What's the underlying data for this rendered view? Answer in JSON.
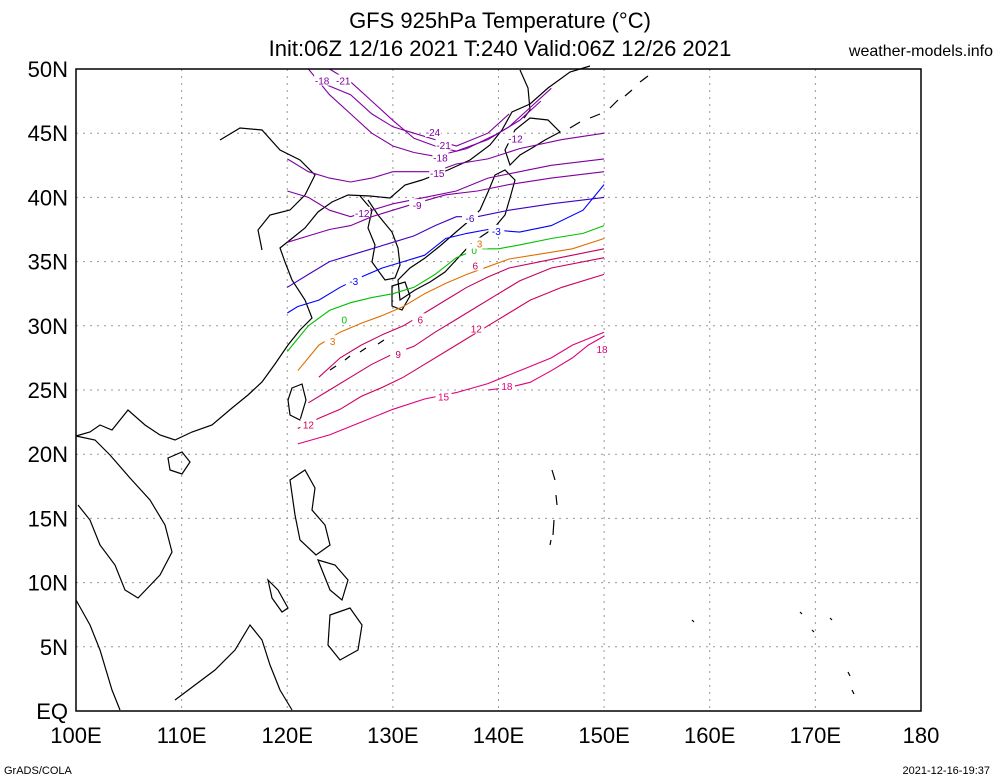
{
  "title": {
    "line1": "GFS 925hPa Temperature (°C)",
    "line2": "Init:06Z 12/16 2021 T:240 Valid:06Z 12/26 2021"
  },
  "site": "weather-models.info",
  "footer": {
    "left": "GrADS/COLA",
    "right": "2021-12-16-19:37"
  },
  "map": {
    "lon_range": [
      100,
      180
    ],
    "lat_range": [
      0,
      50
    ],
    "data_extent": {
      "lon": [
        120,
        150
      ],
      "lat": [
        20,
        50
      ]
    },
    "grid": "dotted",
    "lat_labels": [
      "EQ",
      "5N",
      "10N",
      "15N",
      "20N",
      "25N",
      "30N",
      "35N",
      "40N",
      "45N",
      "50N"
    ],
    "lon_labels": [
      "100E",
      "110E",
      "120E",
      "130E",
      "140E",
      "150E",
      "160E",
      "170E",
      "180"
    ]
  },
  "contours": [
    {
      "value": -24,
      "label": "-24",
      "color": "#8000a0",
      "points": [
        [
          123,
          49
        ],
        [
          126,
          48
        ],
        [
          128,
          46.5
        ],
        [
          130,
          45.5
        ],
        [
          132,
          45
        ],
        [
          134,
          44.5
        ],
        [
          136,
          44
        ],
        [
          139,
          45
        ],
        [
          141,
          46.5
        ]
      ],
      "labels": [
        {
          "text": "-24",
          "lon": 133.8,
          "lat": 45.1
        }
      ]
    },
    {
      "value": -21,
      "label": "-21",
      "color": "#8000a0",
      "points": [
        [
          124,
          50
        ],
        [
          126,
          49
        ],
        [
          128,
          47.5
        ],
        [
          130,
          46
        ],
        [
          132,
          44.6
        ],
        [
          134,
          44
        ],
        [
          136,
          43.6
        ],
        [
          139,
          44.5
        ],
        [
          141,
          45.5
        ],
        [
          143,
          47
        ],
        [
          145,
          48.5
        ]
      ],
      "labels": [
        {
          "text": "-21",
          "lon": 125.3,
          "lat": 49.1
        },
        {
          "text": "-21",
          "lon": 134.8,
          "lat": 44.1
        }
      ]
    },
    {
      "value": -18,
      "label": "-18",
      "color": "#8000a0",
      "points": [
        [
          122,
          50
        ],
        [
          124,
          48
        ],
        [
          126,
          46.5
        ],
        [
          128,
          45
        ],
        [
          130,
          44
        ],
        [
          132,
          43.5
        ],
        [
          134,
          43.2
        ],
        [
          137,
          43.8
        ],
        [
          140,
          45
        ],
        [
          142,
          46
        ],
        [
          144,
          47.5
        ]
      ],
      "labels": [
        {
          "text": "-18",
          "lon": 123.3,
          "lat": 49.1
        },
        {
          "text": "-18",
          "lon": 134.5,
          "lat": 43.1
        }
      ]
    },
    {
      "value": -15,
      "label": "-15",
      "color": "#8000a0",
      "points": [
        [
          120,
          43
        ],
        [
          122,
          42
        ],
        [
          124,
          41.5
        ],
        [
          126,
          41.2
        ],
        [
          128,
          41.5
        ],
        [
          130,
          42
        ],
        [
          132,
          42
        ],
        [
          134,
          42
        ],
        [
          136,
          42.6
        ],
        [
          139,
          43
        ],
        [
          142,
          43.8
        ],
        [
          146,
          44.5
        ],
        [
          150,
          45
        ]
      ],
      "labels": [
        {
          "text": "-15",
          "lon": 134.2,
          "lat": 41.9
        }
      ]
    },
    {
      "value": -12,
      "label": "-12",
      "color": "#8000a0",
      "points": [
        [
          120,
          40.5
        ],
        [
          122,
          40
        ],
        [
          124,
          39
        ],
        [
          126,
          38.5
        ],
        [
          128,
          39
        ],
        [
          130,
          39.5
        ],
        [
          133,
          40
        ],
        [
          136,
          40.5
        ],
        [
          139,
          41.5
        ],
        [
          142,
          42
        ],
        [
          145,
          42.5
        ],
        [
          150,
          43
        ]
      ],
      "labels": [
        {
          "text": "-12",
          "lon": 127.1,
          "lat": 38.8
        },
        {
          "text": "-12",
          "lon": 141.6,
          "lat": 44.6
        }
      ]
    },
    {
      "value": -9,
      "label": "-9",
      "color": "#8000a0",
      "points": [
        [
          120,
          36.5
        ],
        [
          122,
          37
        ],
        [
          124,
          37.5
        ],
        [
          126,
          37.8
        ],
        [
          128,
          38.5
        ],
        [
          130,
          39
        ],
        [
          132,
          39.5
        ],
        [
          135,
          40.2
        ],
        [
          138,
          40.5
        ],
        [
          141,
          41
        ],
        [
          145,
          41.5
        ],
        [
          150,
          42
        ]
      ],
      "labels": [
        {
          "text": "-9",
          "lon": 132.3,
          "lat": 39.4
        }
      ]
    },
    {
      "value": -6,
      "label": "-6",
      "color": "#4000c0",
      "points": [
        [
          120,
          33
        ],
        [
          122,
          34
        ],
        [
          124,
          35
        ],
        [
          126,
          35.5
        ],
        [
          128,
          36
        ],
        [
          130,
          36.5
        ],
        [
          132,
          37
        ],
        [
          134,
          37.8
        ],
        [
          136,
          38.5
        ],
        [
          138,
          38.5
        ],
        [
          141,
          39
        ],
        [
          145,
          39.5
        ],
        [
          150,
          40
        ]
      ],
      "labels": [
        {
          "text": "-6",
          "lon": 137.3,
          "lat": 38.4
        }
      ]
    },
    {
      "value": -3,
      "label": "-3",
      "color": "#0000ff",
      "points": [
        [
          120,
          31
        ],
        [
          121,
          31.5
        ],
        [
          123,
          32
        ],
        [
          125,
          33
        ],
        [
          127,
          33.8
        ],
        [
          129,
          34.5
        ],
        [
          131,
          35
        ],
        [
          133,
          35.5
        ],
        [
          135,
          36.8
        ],
        [
          137,
          37.2
        ],
        [
          139,
          37.5
        ],
        [
          142,
          37.3
        ],
        [
          145,
          37.8
        ],
        [
          148,
          39
        ],
        [
          150,
          41
        ]
      ],
      "labels": [
        {
          "text": "-3",
          "lon": 126.3,
          "lat": 33.5
        },
        {
          "text": "-3",
          "lon": 139.8,
          "lat": 37.4
        }
      ]
    },
    {
      "value": 0,
      "label": "0",
      "color": "#00c000",
      "points": [
        [
          120,
          28
        ],
        [
          121,
          29
        ],
        [
          122,
          30
        ],
        [
          124,
          31.2
        ],
        [
          126,
          31.8
        ],
        [
          128,
          32.2
        ],
        [
          130,
          32.5
        ],
        [
          132,
          33
        ],
        [
          134,
          34
        ],
        [
          136,
          35.3
        ],
        [
          138,
          36
        ],
        [
          140,
          36
        ],
        [
          142,
          36.3
        ],
        [
          145,
          36.8
        ],
        [
          148,
          37.2
        ],
        [
          150,
          37.8
        ]
      ],
      "labels": [
        {
          "text": "0",
          "lon": 125.4,
          "lat": 30.5
        },
        {
          "text": "0",
          "lon": 137.7,
          "lat": 35.9
        }
      ]
    },
    {
      "value": 3,
      "label": "3",
      "color": "#e07000",
      "points": [
        [
          121,
          26.5
        ],
        [
          122,
          27.5
        ],
        [
          123,
          28.5
        ],
        [
          125,
          29.5
        ],
        [
          127,
          30.2
        ],
        [
          129,
          30.8
        ],
        [
          131,
          31.5
        ],
        [
          133,
          32.5
        ],
        [
          135,
          33.3
        ],
        [
          137,
          34
        ],
        [
          139,
          34.6
        ],
        [
          141,
          35.2
        ],
        [
          144,
          35.6
        ],
        [
          147,
          36
        ],
        [
          150,
          36.8
        ]
      ],
      "labels": [
        {
          "text": "3",
          "lon": 124.3,
          "lat": 28.8
        },
        {
          "text": "3",
          "lon": 138.2,
          "lat": 36.4
        }
      ]
    },
    {
      "value": 6,
      "label": "6",
      "color": "#c80060",
      "points": [
        [
          123,
          26
        ],
        [
          125,
          27.5
        ],
        [
          127,
          28.5
        ],
        [
          129,
          29.3
        ],
        [
          131,
          30
        ],
        [
          133,
          31
        ],
        [
          135,
          32
        ],
        [
          137,
          33
        ],
        [
          139,
          33.8
        ],
        [
          141,
          34.5
        ],
        [
          144,
          35
        ],
        [
          147,
          35.5
        ],
        [
          150,
          36
        ]
      ],
      "labels": [
        {
          "text": "6",
          "lon": 132.6,
          "lat": 30.5
        },
        {
          "text": "6",
          "lon": 137.8,
          "lat": 34.7
        }
      ]
    },
    {
      "value": 9,
      "label": "9",
      "color": "#c80060",
      "points": [
        [
          122,
          24
        ],
        [
          124,
          25
        ],
        [
          126,
          26
        ],
        [
          128,
          27
        ],
        [
          130,
          27.8
        ],
        [
          132,
          28.4
        ],
        [
          134,
          29.5
        ],
        [
          136,
          30.5
        ],
        [
          138,
          31.5
        ],
        [
          140,
          32.5
        ],
        [
          142,
          33.5
        ],
        [
          145,
          34.5
        ],
        [
          150,
          35.3
        ]
      ],
      "labels": [
        {
          "text": "9",
          "lon": 130.5,
          "lat": 27.8
        }
      ]
    },
    {
      "value": 12,
      "label": "12",
      "color": "#d0005a",
      "points": [
        [
          121,
          22
        ],
        [
          123,
          22.8
        ],
        [
          125,
          23.5
        ],
        [
          127,
          24.5
        ],
        [
          129,
          25.2
        ],
        [
          131,
          26
        ],
        [
          133,
          27
        ],
        [
          135,
          28
        ],
        [
          137,
          29
        ],
        [
          139,
          30
        ],
        [
          141,
          31
        ],
        [
          143,
          32
        ],
        [
          146,
          33
        ],
        [
          150,
          34
        ]
      ],
      "labels": [
        {
          "text": "12",
          "lon": 122,
          "lat": 22.3
        },
        {
          "text": "12",
          "lon": 137.9,
          "lat": 29.8
        }
      ]
    },
    {
      "value": 15,
      "label": "15",
      "color": "#e0007a",
      "points": [
        [
          121,
          20.8
        ],
        [
          124,
          21.5
        ],
        [
          127,
          22.5
        ],
        [
          130,
          23.5
        ],
        [
          133,
          24.3
        ],
        [
          136,
          24.8
        ],
        [
          139,
          25.5
        ],
        [
          142,
          26.5
        ],
        [
          145,
          27.5
        ],
        [
          147,
          28.5
        ],
        [
          150,
          29.5
        ]
      ],
      "labels": [
        {
          "text": "15",
          "lon": 134.8,
          "lat": 24.5
        }
      ]
    },
    {
      "value": 18,
      "label": "18",
      "color": "#e0007a",
      "points": [
        [
          139,
          25
        ],
        [
          141,
          25.2
        ],
        [
          143,
          25.6
        ],
        [
          145,
          26.5
        ],
        [
          147,
          27.5
        ],
        [
          148.5,
          28.5
        ],
        [
          150,
          29.2
        ]
      ],
      "labels": [
        {
          "text": "18",
          "lon": 140.8,
          "lat": 25.3
        },
        {
          "text": "18",
          "lon": 149.8,
          "lat": 28.2
        }
      ]
    }
  ]
}
